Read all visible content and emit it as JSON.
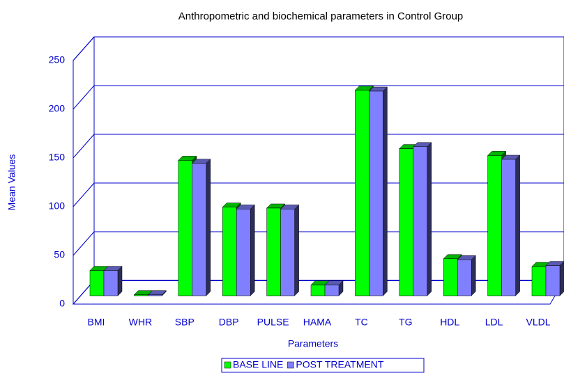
{
  "chart_data": {
    "type": "bar3d",
    "title": "Anthropometric and biochemical parameters in Control Group",
    "x_label": "Parameters",
    "y_label": "Mean Values",
    "categories": [
      "BMI",
      "WHR",
      "SBP",
      "DBP",
      "PULSE",
      "HAMA",
      "TC",
      "TG",
      "HDL",
      "LDL",
      "VLDL"
    ],
    "series": [
      {
        "name": "BASE LINE",
        "color": "#00ff00",
        "values": [
          26,
          1,
          139,
          91,
          90,
          11,
          211,
          151,
          38,
          144,
          30
        ]
      },
      {
        "name": "POST TREATMENT",
        "color": "#8080ff",
        "values": [
          26,
          1,
          136,
          89,
          89,
          11,
          210,
          153,
          37,
          140,
          31
        ]
      }
    ],
    "ylim": [
      0,
      250
    ],
    "yticks": [
      0,
      50,
      100,
      150,
      200,
      250
    ],
    "grid": true,
    "legend": "bottom"
  }
}
